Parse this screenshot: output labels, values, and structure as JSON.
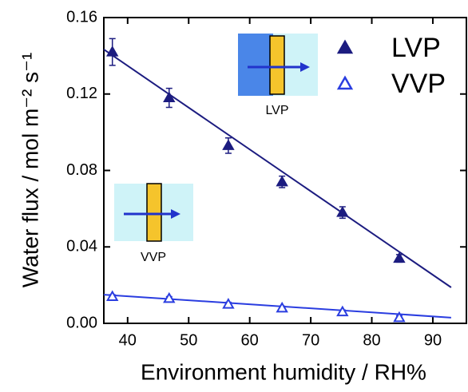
{
  "chart_data": {
    "type": "scatter",
    "xlabel": "Environment humidity / RH%",
    "ylabel": "Water flux / mol m⁻² s⁻¹",
    "xlim": [
      36.1,
      95.5
    ],
    "ylim": [
      0,
      0.16
    ],
    "xticks": [
      40,
      50,
      60,
      70,
      80,
      90
    ],
    "yticks": [
      {
        "value": 0,
        "label": "0.00"
      },
      {
        "value": 0.04,
        "label": "0.04"
      },
      {
        "value": 0.08,
        "label": "0.08"
      },
      {
        "value": 0.12,
        "label": "0.12"
      },
      {
        "value": 0.16,
        "label": "0.16"
      }
    ],
    "series": [
      {
        "name": "LVP",
        "color": "#1c1c80",
        "filled": true,
        "x": [
          37.5,
          46.8,
          56.5,
          65.3,
          75.2,
          84.5
        ],
        "values": [
          0.142,
          0.118,
          0.093,
          0.074,
          0.058,
          0.034
        ],
        "errors": [
          0.007,
          0.005,
          0.004,
          0.003,
          0.003,
          0.002
        ]
      },
      {
        "name": "VVP",
        "color": "#2a3de0",
        "filled": false,
        "x": [
          37.5,
          46.8,
          56.5,
          65.3,
          75.2,
          84.5
        ],
        "values": [
          0.014,
          0.013,
          0.01,
          0.008,
          0.006,
          0.003
        ],
        "errors": [
          0.001,
          0.001,
          0.001,
          0.001,
          0.001,
          0.001
        ]
      }
    ],
    "fits": [
      {
        "color": "#1c1c80",
        "x": [
          36.1,
          93.0
        ],
        "values": [
          0.1433,
          0.0188
        ]
      },
      {
        "color": "#2a3de0",
        "x": [
          36.1,
          93.0
        ],
        "values": [
          0.015,
          0.003
        ]
      }
    ],
    "annotations": [
      "LVP",
      "VVP"
    ]
  }
}
